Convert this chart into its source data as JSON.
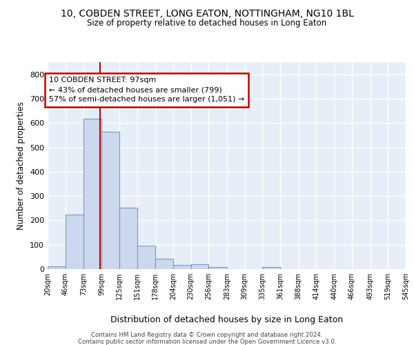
{
  "title_line1": "10, COBDEN STREET, LONG EATON, NOTTINGHAM, NG10 1BL",
  "title_line2": "Size of property relative to detached houses in Long Eaton",
  "xlabel": "Distribution of detached houses by size in Long Eaton",
  "ylabel": "Number of detached properties",
  "bar_edges": [
    20,
    46,
    73,
    99,
    125,
    151,
    178,
    204,
    230,
    256,
    283,
    309,
    335,
    361,
    388,
    414,
    440,
    466,
    493,
    519,
    545
  ],
  "bar_heights": [
    10,
    225,
    617,
    565,
    252,
    95,
    42,
    18,
    20,
    8,
    0,
    0,
    9,
    0,
    0,
    0,
    0,
    0,
    0,
    0
  ],
  "bar_color": "#cdd8ee",
  "bar_edge_color": "#7099c8",
  "vline_x": 97,
  "vline_color": "#c00000",
  "annotation_line1": "10 COBDEN STREET: 97sqm",
  "annotation_line2": "← 43% of detached houses are smaller (799)",
  "annotation_line3": "57% of semi-detached houses are larger (1,051) →",
  "annotation_box_color": "#c00000",
  "annotation_box_bg": "white",
  "ylim": [
    0,
    850
  ],
  "yticks": [
    0,
    100,
    200,
    300,
    400,
    500,
    600,
    700,
    800
  ],
  "tick_labels": [
    "20sqm",
    "46sqm",
    "73sqm",
    "99sqm",
    "125sqm",
    "151sqm",
    "178sqm",
    "204sqm",
    "230sqm",
    "256sqm",
    "283sqm",
    "309sqm",
    "335sqm",
    "361sqm",
    "388sqm",
    "414sqm",
    "440sqm",
    "466sqm",
    "493sqm",
    "519sqm",
    "545sqm"
  ],
  "bg_color": "#e8eef7",
  "grid_color": "white",
  "footer_line1": "Contains HM Land Registry data © Crown copyright and database right 2024.",
  "footer_line2": "Contains public sector information licensed under the Open Government Licence v3.0."
}
